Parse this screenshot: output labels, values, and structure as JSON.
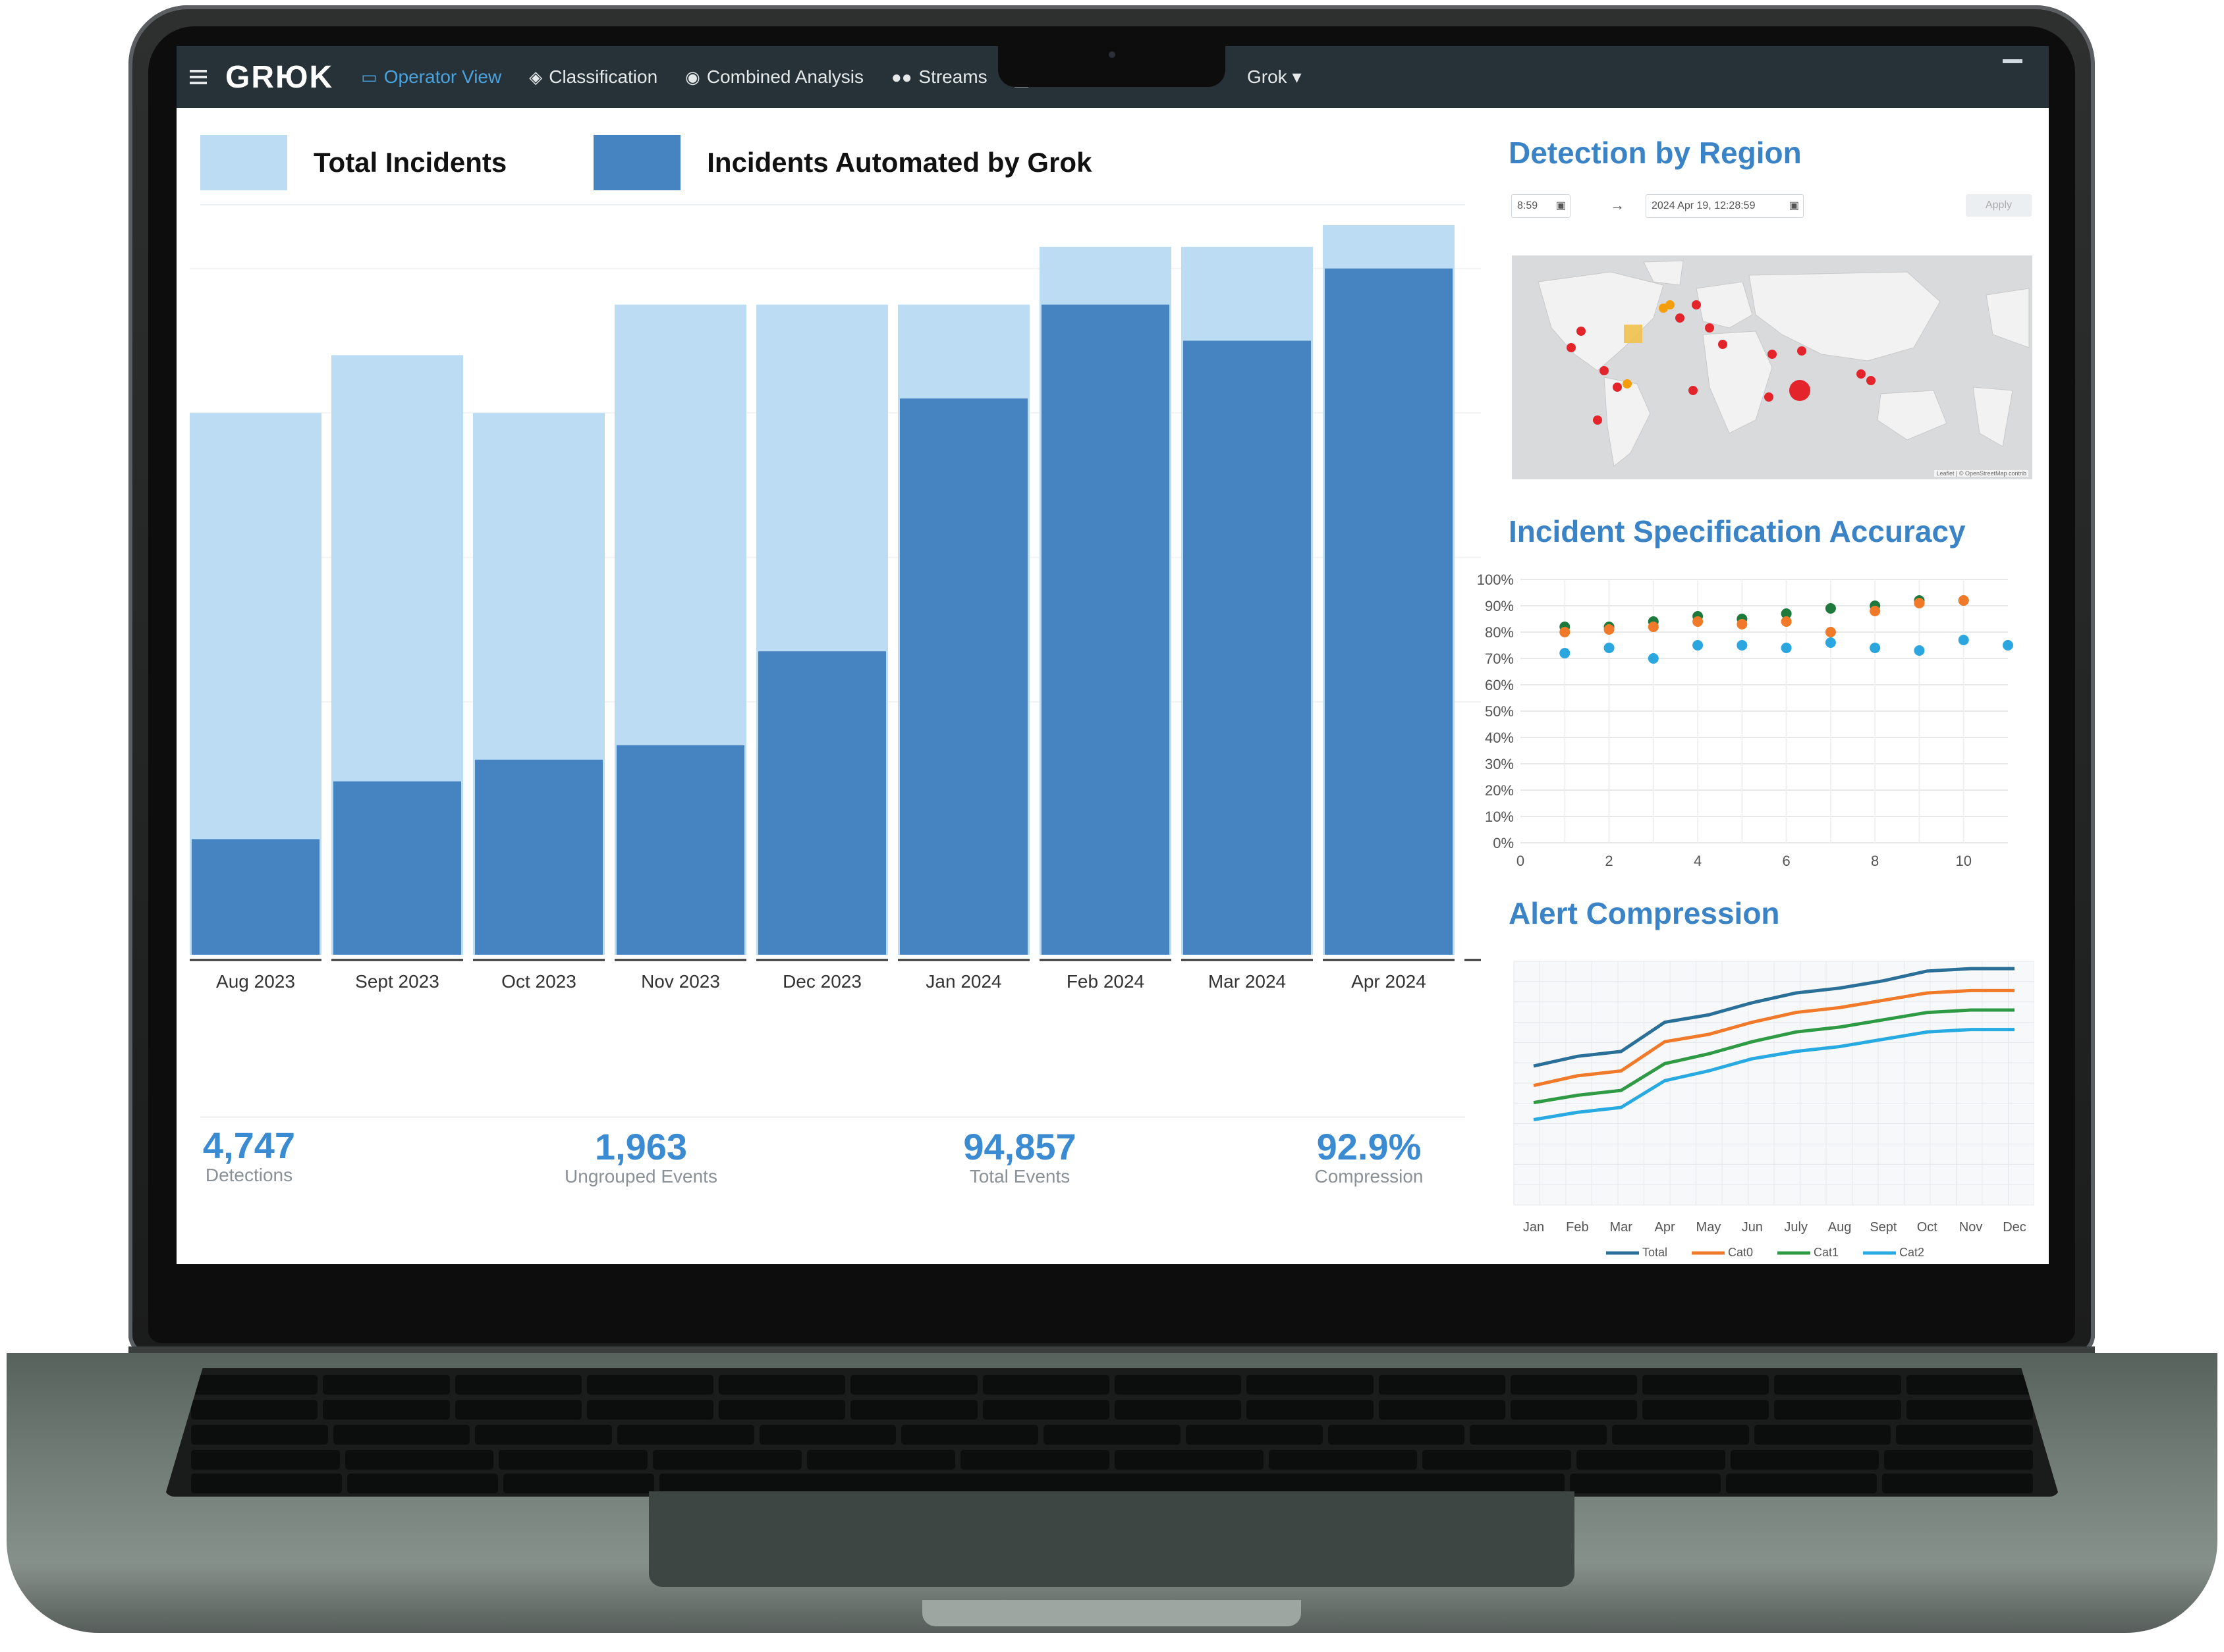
{
  "nav": {
    "logo": "GRЮK",
    "items": [
      {
        "label": "Operator View",
        "icon": "monitor-icon",
        "active": true
      },
      {
        "label": "Classification",
        "icon": "tag-icon",
        "active": false
      },
      {
        "label": "Combined Analysis",
        "icon": "eye-icon",
        "active": false
      },
      {
        "label": "Streams",
        "icon": "users-icon",
        "active": false
      }
    ],
    "user_menu": "Grok"
  },
  "main_chart": {
    "legend": {
      "total": "Total Incidents",
      "automated": "Incidents Automated by Grok"
    },
    "colors": {
      "total": "#bcdcf4",
      "automated": "#4583c1"
    },
    "chart_data": {
      "type": "bar",
      "categories": [
        "Aug 2023",
        "Sept 2023",
        "Oct 2023",
        "Nov 2023",
        "Dec 2023",
        "Jan 2024",
        "Feb 2024",
        "Mar 2024",
        "Apr 2024"
      ],
      "series": [
        {
          "name": "Total Incidents",
          "values": [
            75,
            83,
            75,
            90,
            90,
            90,
            98,
            98,
            101
          ]
        },
        {
          "name": "Incidents Automated by Grok",
          "values": [
            16,
            24,
            27,
            29,
            42,
            77,
            90,
            85,
            95
          ]
        }
      ],
      "ylim": [
        0,
        103
      ],
      "grid": true
    }
  },
  "stats": [
    {
      "value": "4,747",
      "label": "Detections"
    },
    {
      "value": "1,963",
      "label": "Ungrouped Events"
    },
    {
      "value": "94,857",
      "label": "Total Events"
    },
    {
      "value": "92.9%",
      "label": "Compression"
    }
  ],
  "region": {
    "title": "Detection by Region",
    "start": "8:59",
    "arrow": "→",
    "end": "2024 Apr 19, 12:28:59",
    "apply": "Apply",
    "attribution": "Leaflet | © OpenStreetMap contrib",
    "marker_color": "#e3242b",
    "alt_marker_color": "#f59e0b"
  },
  "accuracy": {
    "title": "Incident Specification Accuracy",
    "chart_data": {
      "type": "scatter",
      "yticks": [
        "100%",
        "90%",
        "80%",
        "70%",
        "60%",
        "50%",
        "40%",
        "30%",
        "20%",
        "10%",
        "0%"
      ],
      "xticks": [
        "0",
        "2",
        "4",
        "6",
        "8",
        "10"
      ],
      "xlim": [
        0,
        11
      ],
      "ylim": [
        0,
        100
      ],
      "series": [
        {
          "color": "#1e7a3c",
          "x": [
            1,
            2,
            3,
            4,
            5,
            6,
            7,
            8,
            9,
            10
          ],
          "y": [
            82,
            82,
            84,
            86,
            85,
            87,
            89,
            90,
            92,
            92
          ]
        },
        {
          "color": "#f07a2a",
          "x": [
            1,
            2,
            3,
            4,
            5,
            6,
            7,
            8,
            9,
            10
          ],
          "y": [
            80,
            81,
            82,
            84,
            83,
            84,
            80,
            88,
            91,
            92
          ]
        },
        {
          "color": "#2ba6de",
          "x": [
            1,
            2,
            3,
            4,
            5,
            6,
            7,
            8,
            9,
            10,
            11
          ],
          "y": [
            72,
            74,
            70,
            75,
            75,
            74,
            76,
            74,
            73,
            77,
            75
          ]
        }
      ]
    }
  },
  "compression": {
    "title": "Alert Compression",
    "chart_data": {
      "type": "line",
      "categories": [
        "Jan",
        "Feb",
        "Mar",
        "Apr",
        "May",
        "Jun",
        "July",
        "Aug",
        "Sept",
        "Oct",
        "Nov",
        "Dec"
      ],
      "ylim": [
        0,
        100
      ],
      "series": [
        {
          "name": "Total",
          "color": "#2a6f97",
          "values": [
            57,
            61,
            63,
            75,
            78,
            83,
            87,
            89,
            92,
            96,
            97,
            97
          ]
        },
        {
          "name": "Cat0",
          "color": "#f07a2a",
          "values": [
            49,
            53,
            55,
            67,
            70,
            75,
            79,
            81,
            84,
            87,
            88,
            88
          ]
        },
        {
          "name": "Cat1",
          "color": "#2e9a44",
          "values": [
            42,
            45,
            47,
            58,
            62,
            67,
            71,
            73,
            76,
            79,
            80,
            80
          ]
        },
        {
          "name": "Cat2",
          "color": "#27a9e1",
          "values": [
            35,
            38,
            40,
            51,
            55,
            60,
            63,
            65,
            68,
            71,
            72,
            72
          ]
        }
      ]
    }
  }
}
